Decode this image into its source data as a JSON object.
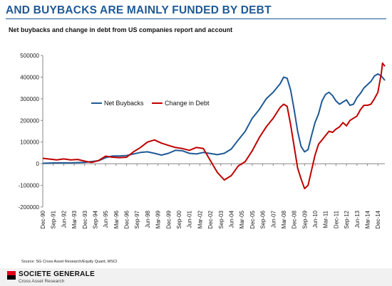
{
  "header": {
    "title": "AND BUYBACKS ARE MAINLY FUNDED BY DEBT",
    "subtitle": "Net buybacks and change in debt from US companies report and account"
  },
  "footer": {
    "source": "Source: SG Cross Asset Research/Equity Quant, MSCI",
    "brand": "SOCIETE GENERALE",
    "brand_sub": "Cross Asset Research"
  },
  "colors": {
    "net_buybacks": "#1f5a96",
    "change_in_debt": "#c00000",
    "title": "#1f5a96",
    "logo_red": "#e2001a"
  },
  "chart_data": {
    "type": "line",
    "title": "",
    "xlabel": "",
    "ylabel": "",
    "ylim": [
      -200000,
      500000
    ],
    "yticks": [
      -200000,
      -100000,
      0,
      100000,
      200000,
      300000,
      400000,
      500000
    ],
    "x_start": "Dec-90",
    "x_end": "Jun-15",
    "x_ticks": [
      "Dec-90",
      "Sep-91",
      "Jun-92",
      "Mar-93",
      "Dec-93",
      "Sep-94",
      "Jun-95",
      "Mar-96",
      "Dec-96",
      "Sep-97",
      "Jun-98",
      "Mar-99",
      "Dec-99",
      "Sep-00",
      "Jun-01",
      "Mar-02",
      "Dec-02",
      "Sep-03",
      "Jun-04",
      "Mar-05",
      "Dec-05",
      "Sep-06",
      "Jun-07",
      "Mar-08",
      "Dec-08",
      "Sep-09",
      "Jun-10",
      "Mar-11",
      "Dec-11",
      "Sep-12",
      "Jun-13",
      "Mar-14",
      "Dec-14"
    ],
    "legend_position": "upper-left-inside",
    "grid": false,
    "series": [
      {
        "name": "Net Buybacks",
        "points": [
          [
            "Dec-90",
            2000
          ],
          [
            "Dec-91",
            4000
          ],
          [
            "Dec-92",
            4000
          ],
          [
            "Dec-93",
            6000
          ],
          [
            "Dec-94",
            14000
          ],
          [
            "Jun-95",
            28000
          ],
          [
            "Dec-95",
            36000
          ],
          [
            "Jun-96",
            36000
          ],
          [
            "Dec-96",
            38000
          ],
          [
            "Jun-97",
            45000
          ],
          [
            "Dec-97",
            52000
          ],
          [
            "Jun-98",
            55000
          ],
          [
            "Dec-98",
            48000
          ],
          [
            "Jun-99",
            40000
          ],
          [
            "Dec-99",
            48000
          ],
          [
            "Jun-00",
            62000
          ],
          [
            "Dec-00",
            60000
          ],
          [
            "Jun-01",
            48000
          ],
          [
            "Dec-01",
            45000
          ],
          [
            "Jun-02",
            52000
          ],
          [
            "Dec-02",
            47000
          ],
          [
            "Jun-03",
            42000
          ],
          [
            "Dec-03",
            48000
          ],
          [
            "Jun-04",
            68000
          ],
          [
            "Dec-04",
            110000
          ],
          [
            "Jun-05",
            150000
          ],
          [
            "Dec-05",
            210000
          ],
          [
            "Jun-06",
            250000
          ],
          [
            "Dec-06",
            300000
          ],
          [
            "Jun-07",
            330000
          ],
          [
            "Dec-07",
            370000
          ],
          [
            "Mar-08",
            400000
          ],
          [
            "Jun-08",
            395000
          ],
          [
            "Sep-08",
            340000
          ],
          [
            "Dec-08",
            250000
          ],
          [
            "Mar-09",
            150000
          ],
          [
            "Jun-09",
            80000
          ],
          [
            "Sep-09",
            55000
          ],
          [
            "Dec-09",
            65000
          ],
          [
            "Mar-10",
            130000
          ],
          [
            "Jun-10",
            190000
          ],
          [
            "Sep-10",
            230000
          ],
          [
            "Dec-10",
            290000
          ],
          [
            "Mar-11",
            320000
          ],
          [
            "Jun-11",
            330000
          ],
          [
            "Sep-11",
            315000
          ],
          [
            "Dec-11",
            290000
          ],
          [
            "Mar-12",
            275000
          ],
          [
            "Jun-12",
            285000
          ],
          [
            "Sep-12",
            295000
          ],
          [
            "Dec-12",
            270000
          ],
          [
            "Mar-13",
            275000
          ],
          [
            "Jun-13",
            305000
          ],
          [
            "Sep-13",
            325000
          ],
          [
            "Dec-13",
            350000
          ],
          [
            "Jun-14",
            380000
          ],
          [
            "Sep-14",
            405000
          ],
          [
            "Dec-14",
            415000
          ],
          [
            "Mar-15",
            405000
          ],
          [
            "Jun-15",
            385000
          ]
        ]
      },
      {
        "name": "Change in Debt",
        "points": [
          [
            "Dec-90",
            25000
          ],
          [
            "Dec-91",
            18000
          ],
          [
            "Jun-92",
            22000
          ],
          [
            "Dec-92",
            18000
          ],
          [
            "Jun-93",
            20000
          ],
          [
            "Dec-93",
            12000
          ],
          [
            "Jun-94",
            6000
          ],
          [
            "Dec-94",
            15000
          ],
          [
            "Jun-95",
            35000
          ],
          [
            "Dec-95",
            30000
          ],
          [
            "Jun-96",
            28000
          ],
          [
            "Dec-96",
            30000
          ],
          [
            "Jun-97",
            55000
          ],
          [
            "Dec-97",
            75000
          ],
          [
            "Jun-98",
            100000
          ],
          [
            "Dec-98",
            110000
          ],
          [
            "Jun-99",
            95000
          ],
          [
            "Dec-99",
            85000
          ],
          [
            "Jun-00",
            75000
          ],
          [
            "Dec-00",
            70000
          ],
          [
            "Jun-01",
            62000
          ],
          [
            "Dec-01",
            75000
          ],
          [
            "Jun-02",
            70000
          ],
          [
            "Dec-02",
            15000
          ],
          [
            "Jun-03",
            -40000
          ],
          [
            "Dec-03",
            -75000
          ],
          [
            "Jun-04",
            -55000
          ],
          [
            "Dec-04",
            -10000
          ],
          [
            "Jun-05",
            10000
          ],
          [
            "Dec-05",
            60000
          ],
          [
            "Jun-06",
            120000
          ],
          [
            "Dec-06",
            170000
          ],
          [
            "Jun-07",
            210000
          ],
          [
            "Dec-07",
            260000
          ],
          [
            "Mar-08",
            275000
          ],
          [
            "Jun-08",
            265000
          ],
          [
            "Sep-08",
            180000
          ],
          [
            "Dec-08",
            80000
          ],
          [
            "Mar-09",
            -20000
          ],
          [
            "Jun-09",
            -70000
          ],
          [
            "Sep-09",
            -115000
          ],
          [
            "Dec-09",
            -100000
          ],
          [
            "Mar-10",
            -30000
          ],
          [
            "Jun-10",
            40000
          ],
          [
            "Sep-10",
            90000
          ],
          [
            "Dec-10",
            110000
          ],
          [
            "Mar-11",
            130000
          ],
          [
            "Jun-11",
            150000
          ],
          [
            "Sep-11",
            145000
          ],
          [
            "Dec-11",
            160000
          ],
          [
            "Mar-12",
            170000
          ],
          [
            "Jun-12",
            190000
          ],
          [
            "Sep-12",
            175000
          ],
          [
            "Dec-12",
            200000
          ],
          [
            "Mar-13",
            210000
          ],
          [
            "Jun-13",
            220000
          ],
          [
            "Sep-13",
            250000
          ],
          [
            "Dec-13",
            270000
          ],
          [
            "Mar-14",
            270000
          ],
          [
            "Jun-14",
            275000
          ],
          [
            "Sep-14",
            300000
          ],
          [
            "Dec-14",
            330000
          ],
          [
            "Mar-15",
            420000
          ],
          [
            "Apr-15",
            465000
          ],
          [
            "Jun-15",
            450000
          ]
        ]
      }
    ]
  }
}
